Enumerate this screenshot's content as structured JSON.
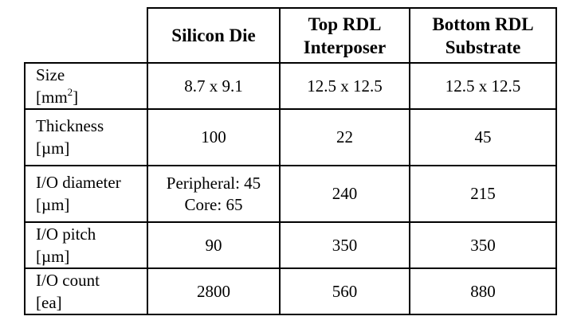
{
  "table": {
    "columns": [
      "",
      "Silicon Die",
      "Top RDL Interposer",
      "Bottom RDL Substrate"
    ],
    "column_lines": [
      [],
      [
        "Silicon Die"
      ],
      [
        "Top RDL",
        "Interposer"
      ],
      [
        "Bottom RDL",
        "Substrate"
      ]
    ],
    "rows": [
      {
        "label": "Size",
        "unit_prefix": "[mm",
        "unit_sup": "2",
        "unit_suffix": "]",
        "values": [
          "8.7 x 9.1",
          "12.5 x 12.5",
          "12.5 x 12.5"
        ]
      },
      {
        "label": "Thickness",
        "unit": "[µm]",
        "values": [
          "100",
          "22",
          "45"
        ]
      },
      {
        "label": "I/O diameter",
        "unit": "[µm]",
        "values_multiline": [
          "Peripheral: 45",
          "Core: 65"
        ],
        "values": [
          "Peripheral: 45 Core: 65",
          "240",
          "215"
        ]
      },
      {
        "label": "I/O pitch",
        "unit": "[µm]",
        "values": [
          "90",
          "350",
          "350"
        ]
      },
      {
        "label": "I/O count",
        "unit": "[ea]",
        "values": [
          "2800",
          "560",
          "880"
        ]
      }
    ]
  }
}
